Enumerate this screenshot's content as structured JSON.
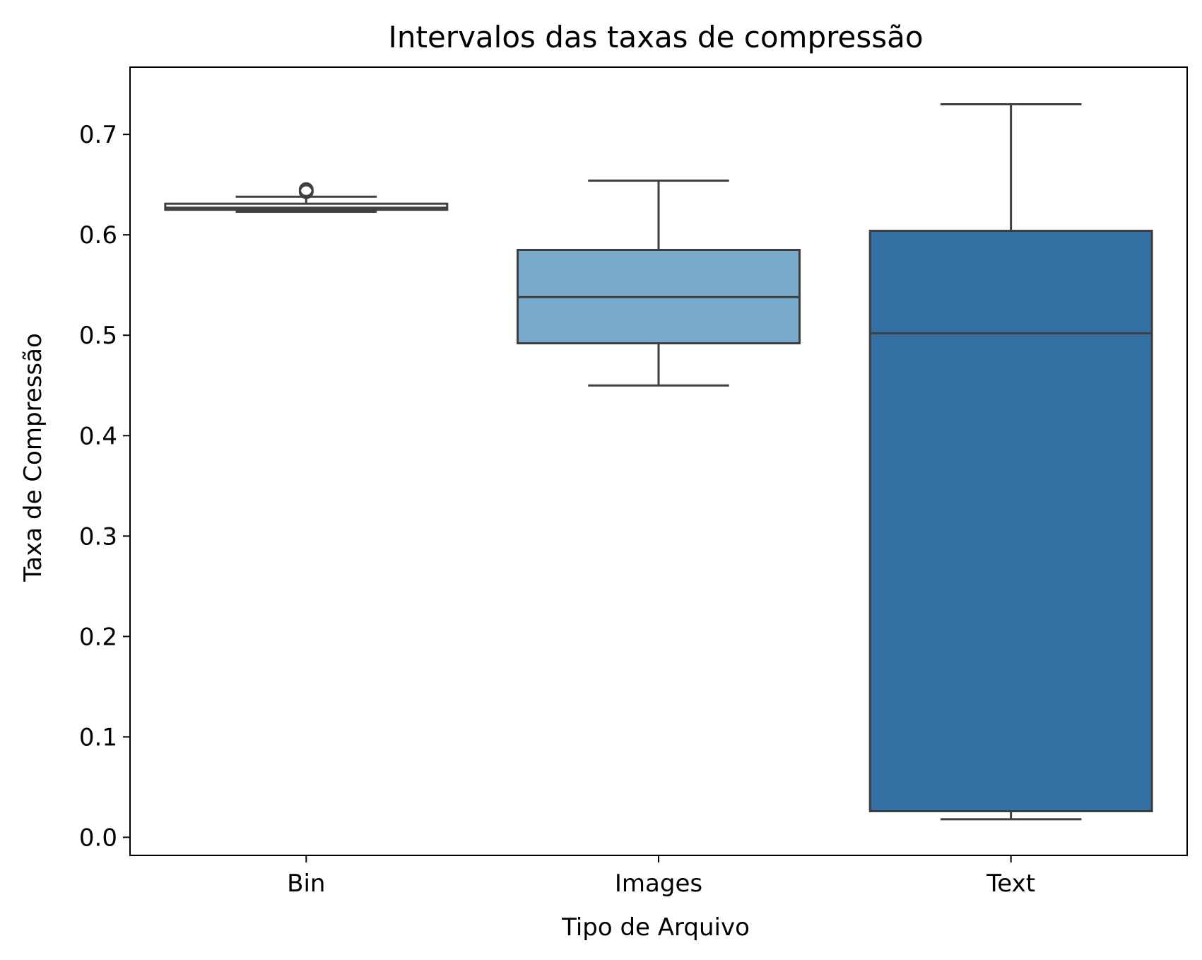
{
  "chart_data": {
    "type": "box",
    "title": "Intervalos das taxas de compressão",
    "xlabel": "Tipo de Arquivo",
    "ylabel": "Taxa de Compressão",
    "ylim": [
      -0.018,
      0.767
    ],
    "yticks": [
      0.0,
      0.1,
      0.2,
      0.3,
      0.4,
      0.5,
      0.6,
      0.7
    ],
    "ytick_labels": [
      "0.0",
      "0.1",
      "0.2",
      "0.3",
      "0.4",
      "0.5",
      "0.6",
      "0.7"
    ],
    "grid": false,
    "categories": [
      "Bin",
      "Images",
      "Text"
    ],
    "boxes": [
      {
        "category": "Bin",
        "whisker_low": 0.623,
        "q1": 0.625,
        "median": 0.627,
        "q3": 0.631,
        "whisker_high": 0.638,
        "outliers": [
          0.643,
          0.645
        ],
        "color": "#f7fbff"
      },
      {
        "category": "Images",
        "whisker_low": 0.45,
        "q1": 0.492,
        "median": 0.538,
        "q3": 0.585,
        "whisker_high": 0.654,
        "outliers": [],
        "color": "#79aacb"
      },
      {
        "category": "Text",
        "whisker_low": 0.018,
        "q1": 0.026,
        "median": 0.502,
        "q3": 0.604,
        "whisker_high": 0.73,
        "outliers": [],
        "color": "#3470a3"
      }
    ],
    "colors": {
      "edge": "#3f3f3f",
      "axis": "#000000"
    }
  }
}
